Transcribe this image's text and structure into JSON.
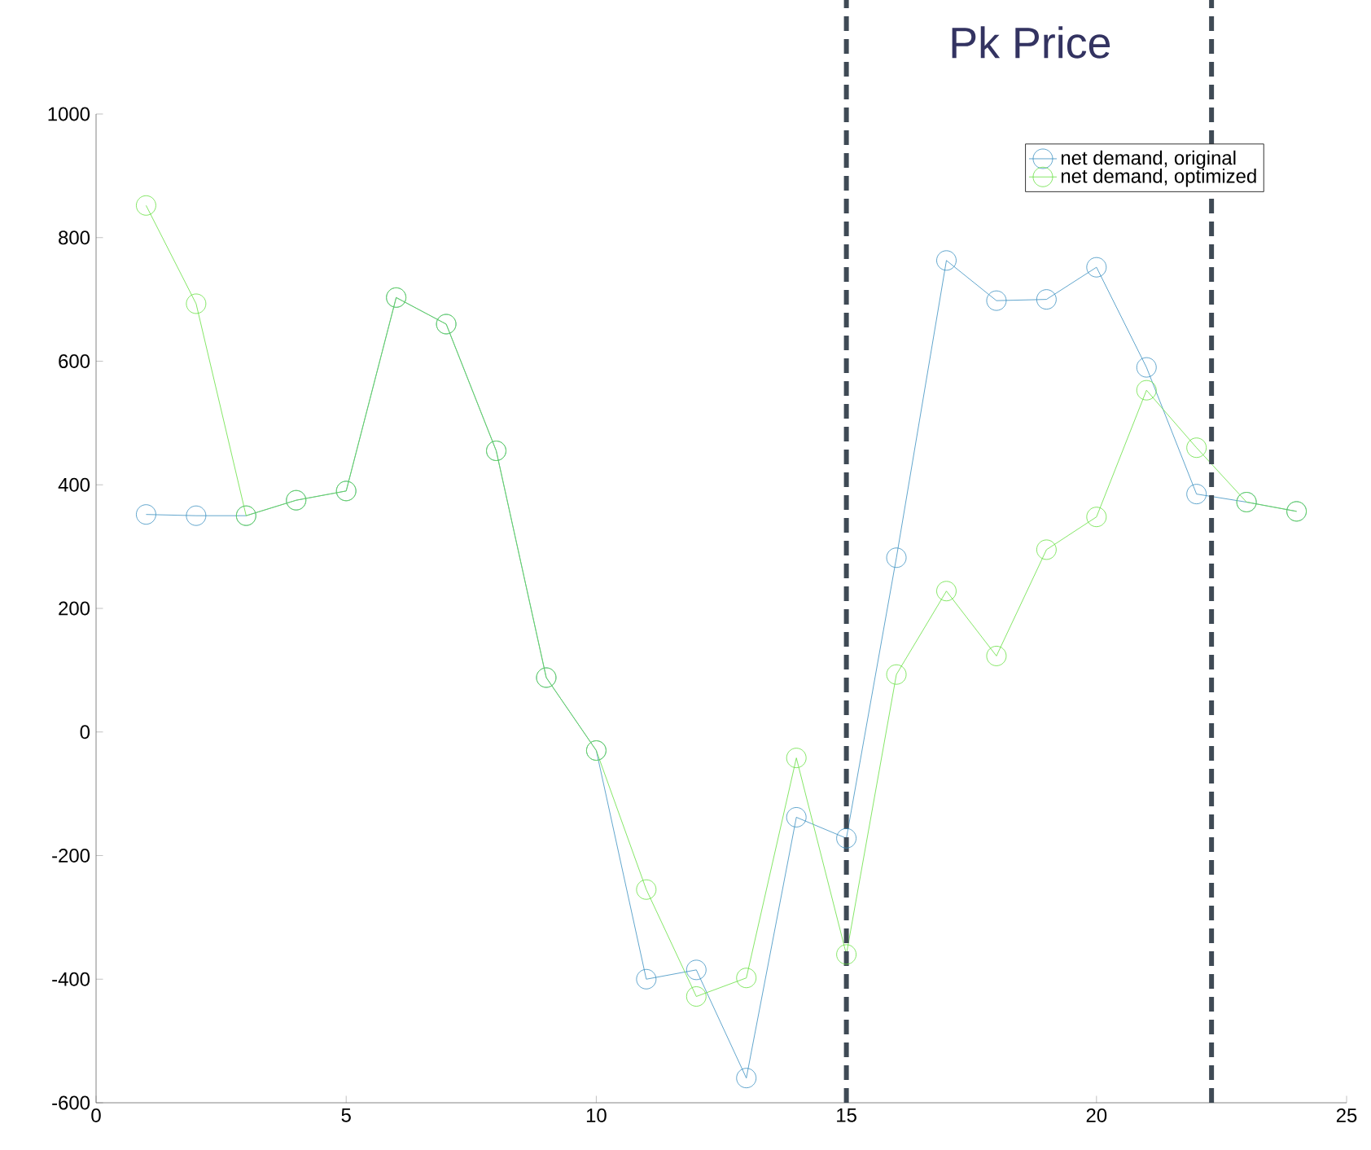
{
  "chart_data": {
    "type": "line",
    "x": [
      1,
      2,
      3,
      4,
      5,
      6,
      7,
      8,
      9,
      10,
      11,
      12,
      13,
      14,
      15,
      16,
      17,
      18,
      19,
      20,
      21,
      22,
      23,
      24
    ],
    "series": [
      {
        "name": "net demand, original",
        "color": "#3a8fc0",
        "values": [
          352,
          350,
          350,
          375,
          390,
          703,
          660,
          455,
          88,
          -30,
          -400,
          -385,
          -560,
          -138,
          -172,
          282,
          763,
          698,
          700,
          752,
          590,
          385,
          372,
          357
        ]
      },
      {
        "name": "net demand, optimized",
        "color": "#66e040",
        "values": [
          852,
          693,
          350,
          375,
          390,
          703,
          660,
          455,
          88,
          -30,
          -255,
          -428,
          -398,
          -42,
          -360,
          93,
          228,
          123,
          295,
          348,
          553,
          460,
          372,
          357
        ]
      }
    ],
    "xlim": [
      0,
      25
    ],
    "xticks": [
      0,
      5,
      10,
      15,
      20,
      25
    ],
    "ylim": [
      -600,
      1000
    ],
    "yticks": [
      -600,
      -400,
      -200,
      0,
      200,
      400,
      600,
      800,
      1000
    ],
    "ref_lines": [
      {
        "axis": "x",
        "value": 15,
        "color": "#3f4a55",
        "line_style": "dashed"
      },
      {
        "axis": "x",
        "value": 22.3,
        "color": "#3f4a55",
        "line_style": "dashed"
      }
    ],
    "annotations": [
      "Pk Price"
    ],
    "legend": "top right",
    "marker": "circle",
    "line_style": "solid",
    "grid": false
  }
}
